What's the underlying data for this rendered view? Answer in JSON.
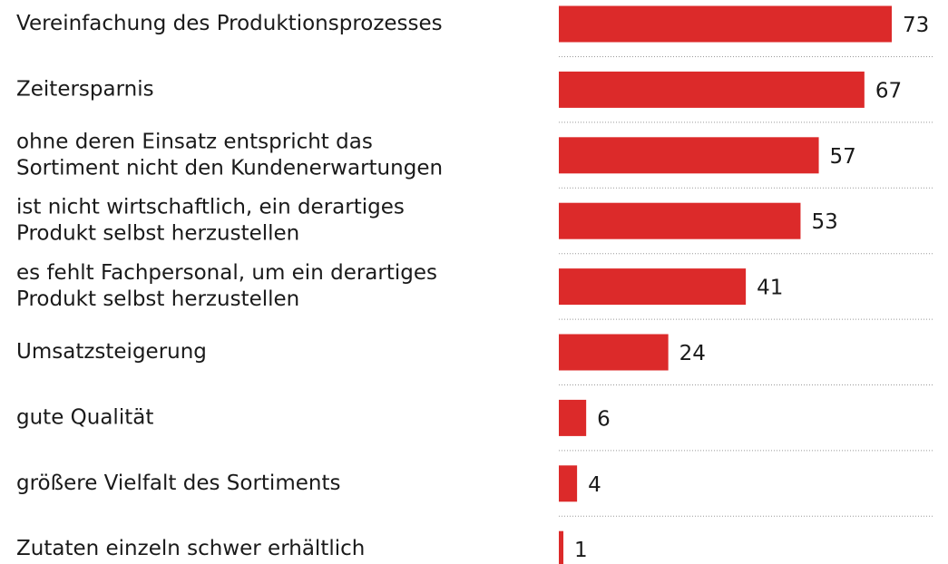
{
  "chart_data": {
    "type": "bar",
    "orientation": "horizontal",
    "color": "#dc2a2a",
    "categories": [
      "Vereinfachung des Produktionsprozesses",
      "Zeitersparnis",
      [
        "ohne deren Einsatz entspricht das",
        "Sortiment nicht den Kundenerwartungen"
      ],
      [
        "ist nicht wirtschaftlich, ein derartiges",
        "Produkt selbst herzustellen"
      ],
      [
        "es fehlt Fachpersonal, um ein derartiges",
        "Produkt selbst herzustellen"
      ],
      "Umsatzsteigerung",
      "gute Qualität",
      "größere Vielfalt des Sortiments",
      "Zutaten einzeln schwer erhältlich"
    ],
    "values": [
      73,
      67,
      57,
      53,
      41,
      24,
      6,
      4,
      1
    ]
  }
}
